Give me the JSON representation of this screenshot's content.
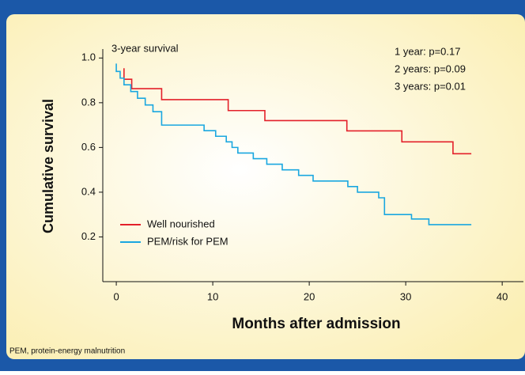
{
  "chart_data": {
    "type": "line",
    "step": true,
    "annotations": [
      "3-year survival",
      "1 year: p=0.17",
      "2 years: p=0.09",
      "3 years: p=0.01"
    ],
    "xlabel": "Months after admission",
    "ylabel": "Cumulative survival",
    "xlim": [
      -1.4,
      42.2
    ],
    "ylim": [
      0,
      1.04
    ],
    "xticks": [
      0,
      10,
      20,
      30,
      40
    ],
    "yticks": [
      {
        "value": 1,
        "label": "1.0"
      },
      0.8,
      0.6,
      0.4,
      0.2
    ],
    "legend": "lower left",
    "series": [
      {
        "name": "Well nourished",
        "color": "#e3202a",
        "x": [
          0.8,
          0.8,
          1.6,
          4.7,
          11.6,
          15.4,
          23.9,
          29.6,
          34.9,
          36.8
        ],
        "values": [
          0.954,
          0.905,
          0.863,
          0.814,
          0.765,
          0.72,
          0.674,
          0.625,
          0.572,
          0.572
        ]
      },
      {
        "name": "PEM/risk for PEM",
        "color": "#1aa7e0",
        "x": [
          0,
          0,
          0.4,
          0.8,
          1.5,
          2.2,
          3,
          3.8,
          4.7,
          9.1,
          10.3,
          11.4,
          12,
          12.6,
          14.2,
          15.6,
          17.2,
          18.9,
          20.4,
          24,
          25,
          27.2,
          27.8,
          30.6,
          32.4,
          36.8
        ],
        "values": [
          0.975,
          0.94,
          0.91,
          0.88,
          0.85,
          0.82,
          0.79,
          0.76,
          0.7,
          0.675,
          0.65,
          0.625,
          0.6,
          0.575,
          0.55,
          0.525,
          0.5,
          0.475,
          0.45,
          0.425,
          0.4,
          0.375,
          0.3,
          0.28,
          0.255,
          0.255
        ]
      }
    ]
  },
  "footnote": "PEM, protein-energy malnutrition"
}
